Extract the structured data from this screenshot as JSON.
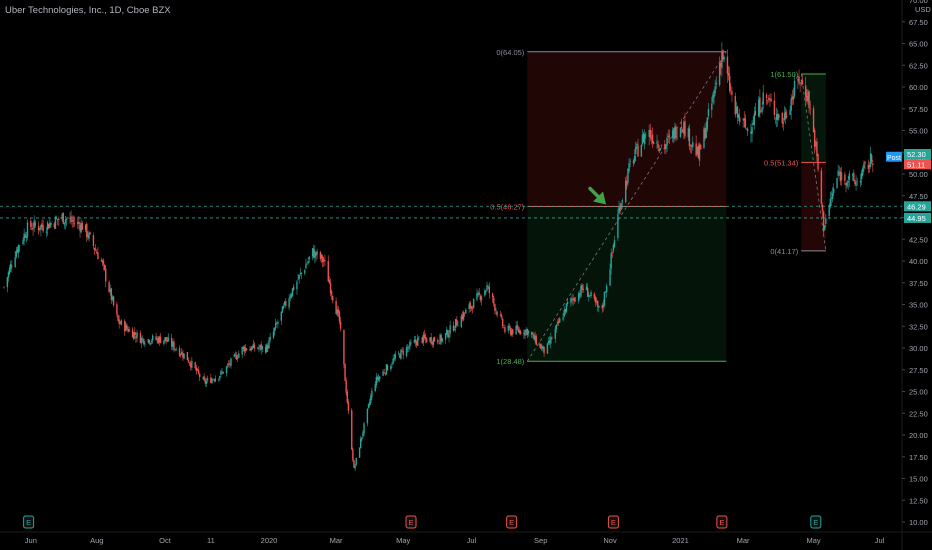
{
  "header": {
    "symbol_title": "Uber Technologies, Inc., 1D, Cboe BZX"
  },
  "colors": {
    "up": "#26a69a",
    "down": "#ef5350",
    "background": "#000000",
    "axis_text": "#a3a6af"
  },
  "chart_data": {
    "type": "candlestick",
    "title": "Uber Technologies, Inc., 1D, Cboe BZX",
    "y_unit": "USD",
    "ylim": [
      10,
      70
    ],
    "y_ticks": [
      "10.00",
      "12.50",
      "15.00",
      "17.50",
      "20.00",
      "22.50",
      "25.00",
      "27.50",
      "30.00",
      "32.50",
      "35.00",
      "37.50",
      "40.00",
      "42.50",
      "45.00",
      "47.50",
      "50.00",
      "52.50",
      "55.00",
      "57.50",
      "60.00",
      "62.50",
      "65.00",
      "67.50"
    ],
    "x_ticks": [
      "Jun",
      "Aug",
      "Oct",
      "11",
      "2020",
      "Mar",
      "May",
      "Jul",
      "Sep",
      "Nov",
      "2021",
      "Mar",
      "May",
      "Jul"
    ],
    "close_path": {
      "dates": [
        "2019-05-10",
        "2019-05-20",
        "2019-06-01",
        "2019-06-15",
        "2019-07-01",
        "2019-07-20",
        "2019-08-05",
        "2019-08-20",
        "2019-09-10",
        "2019-10-01",
        "2019-10-20",
        "2019-11-05",
        "2019-11-20",
        "2019-12-10",
        "2019-12-31",
        "2020-01-20",
        "2020-02-10",
        "2020-02-20",
        "2020-03-05",
        "2020-03-18",
        "2020-04-05",
        "2020-04-25",
        "2020-05-15",
        "2020-06-05",
        "2020-06-25",
        "2020-07-15",
        "2020-07-31",
        "2020-08-20",
        "2020-09-05",
        "2020-09-25",
        "2020-10-10",
        "2020-10-25",
        "2020-11-04",
        "2020-11-10",
        "2020-11-20",
        "2020-12-05",
        "2020-12-20",
        "2021-01-05",
        "2021-01-20",
        "2021-02-01",
        "2021-02-10",
        "2021-02-22",
        "2021-03-05",
        "2021-03-20",
        "2021-04-05",
        "2021-04-20",
        "2021-04-28",
        "2021-05-05",
        "2021-05-12",
        "2021-05-25",
        "2021-06-10",
        "2021-06-25"
      ],
      "close": [
        37,
        41,
        44,
        44,
        45,
        44,
        40,
        33,
        31,
        31,
        29,
        26,
        27,
        30,
        30,
        36,
        41,
        40,
        33,
        16,
        26,
        29,
        31,
        31,
        34,
        37,
        32,
        32,
        29.5,
        35,
        37,
        34,
        41,
        46,
        51,
        55,
        53,
        56,
        52,
        58,
        64,
        57,
        55,
        59,
        56,
        61,
        59,
        53,
        44,
        50,
        49,
        51.9
      ]
    },
    "fib_tools": [
      {
        "name": "fib-1",
        "levels": [
          {
            "label": "0(64.05)",
            "value": 64.05
          },
          {
            "label": "0.5(46.27)",
            "value": 46.27
          },
          {
            "label": "1(28.48)",
            "value": 28.48
          }
        ]
      },
      {
        "name": "fib-2",
        "levels": [
          {
            "label": "1(61.50)",
            "value": 61.5
          },
          {
            "label": "0.5(51.34)",
            "value": 51.34
          },
          {
            "label": "0(41.17)",
            "value": 41.17
          }
        ]
      }
    ],
    "price_tags": [
      {
        "name": "post-tag",
        "label": "Post",
        "value": 51.98,
        "text": "51.98",
        "color": "#2196f3"
      },
      {
        "name": "tag-52-30",
        "value": 52.3,
        "text": "52.30",
        "color": "#26a69a"
      },
      {
        "name": "tag-51-11",
        "value": 51.11,
        "text": "51.11",
        "color": "#ef5350"
      },
      {
        "name": "tag-46-29",
        "value": 46.29,
        "text": "46.29",
        "color": "#26a69a"
      },
      {
        "name": "tag-44-95",
        "value": 44.95,
        "text": "44.95",
        "color": "#26a69a"
      }
    ],
    "horizontal_lines": [
      {
        "value": 44.95,
        "style": "dashed",
        "color": "#26a69a"
      },
      {
        "value": 46.29,
        "style": "dashed",
        "color": "#26a69a"
      }
    ],
    "event_markers": [
      {
        "date": "2019-06-01",
        "kind": "E",
        "color": "#26a69a"
      },
      {
        "date": "2020-05-08",
        "kind": "E",
        "color": "#ef5350"
      },
      {
        "date": "2020-08-06",
        "kind": "E",
        "color": "#ef5350"
      },
      {
        "date": "2020-11-05",
        "kind": "E",
        "color": "#ef5350"
      },
      {
        "date": "2021-02-10",
        "kind": "E",
        "color": "#ef5350"
      },
      {
        "date": "2021-05-05",
        "kind": "E",
        "color": "#26a69a"
      }
    ],
    "annotation_arrow": {
      "color": "#43a047",
      "date": "2020-11-02",
      "value": 46.27
    }
  }
}
